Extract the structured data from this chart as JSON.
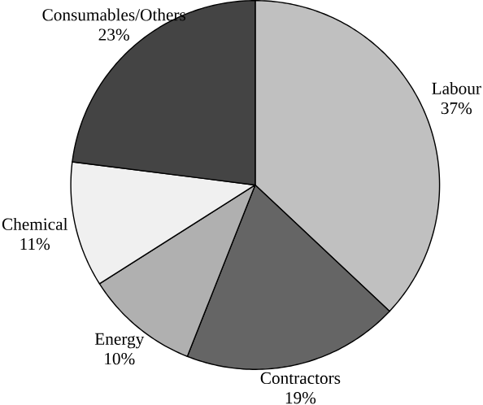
{
  "chart_data": {
    "type": "pie",
    "categories": [
      "Labour",
      "Contractors",
      "Energy",
      "Chemical",
      "Consumables/Others"
    ],
    "values": [
      37,
      19,
      10,
      11,
      23
    ],
    "value_labels": [
      "37%",
      "19%",
      "10%",
      "11%",
      "23%"
    ],
    "colors": [
      "#c0c0c0",
      "#656565",
      "#b0b0b0",
      "#f0f0f0",
      "#444444"
    ]
  }
}
